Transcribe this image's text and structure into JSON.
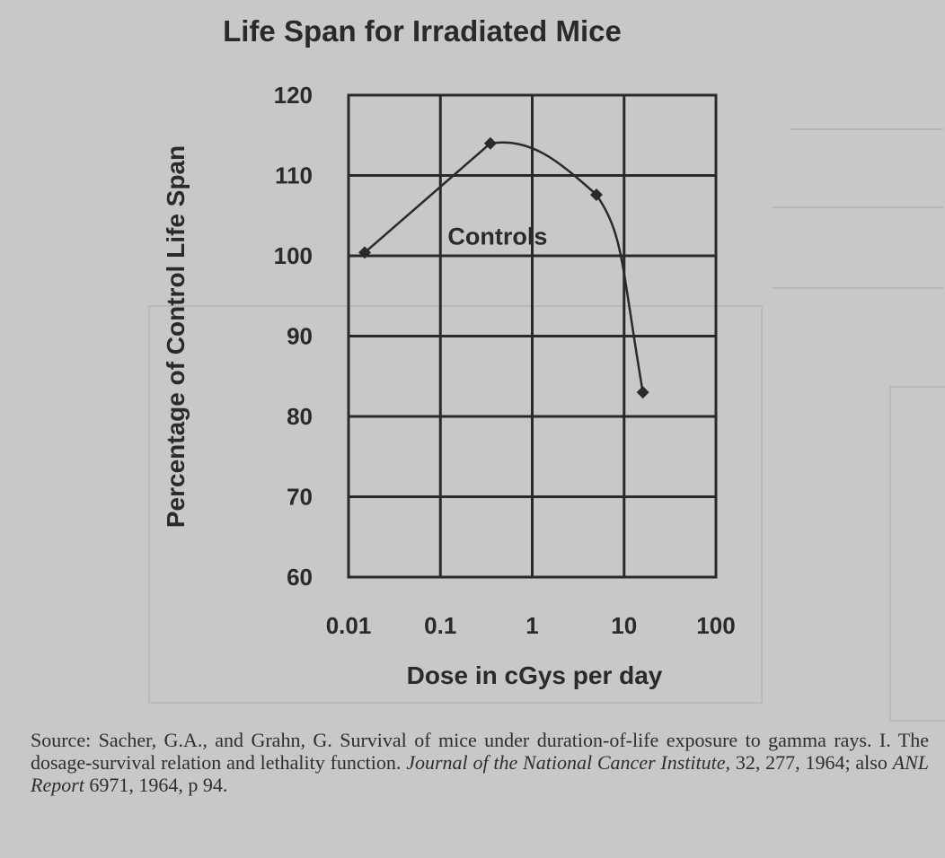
{
  "chart_data": {
    "type": "line",
    "title": "Life Span for Irradiated Mice",
    "xlabel": "Dose in cGys per day",
    "ylabel": "Percentage of Control Life Span",
    "xscale": "log",
    "xlim": [
      0.01,
      100
    ],
    "ylim": [
      60,
      120
    ],
    "x_tick_labels": [
      "0.01",
      "0.1",
      "1",
      "10",
      "100"
    ],
    "y_tick_labels": [
      "120",
      "110",
      "100",
      "90",
      "80",
      "70",
      "60"
    ],
    "grid": true,
    "series": [
      {
        "x": [
          0.015,
          0.35,
          5,
          16
        ],
        "y": [
          100.4,
          114,
          107.6,
          83
        ],
        "marker": "diamond",
        "color": "#2a2a2a"
      }
    ],
    "annotations": [
      {
        "text": "Controls",
        "x": 0.12,
        "y": 102.5
      }
    ]
  },
  "source": {
    "prefix": "Source: Sacher, G.A., and Grahn, G. Survival of mice under duration-of-life exposure to gamma rays. I. The dosage-survival relation and lethality function. ",
    "journal": "Journal of the National Cancer Institute,",
    "middle": " 32, 277, 1964; also ",
    "report": "ANL Report",
    "suffix": " 6971, 1964, p 94."
  }
}
